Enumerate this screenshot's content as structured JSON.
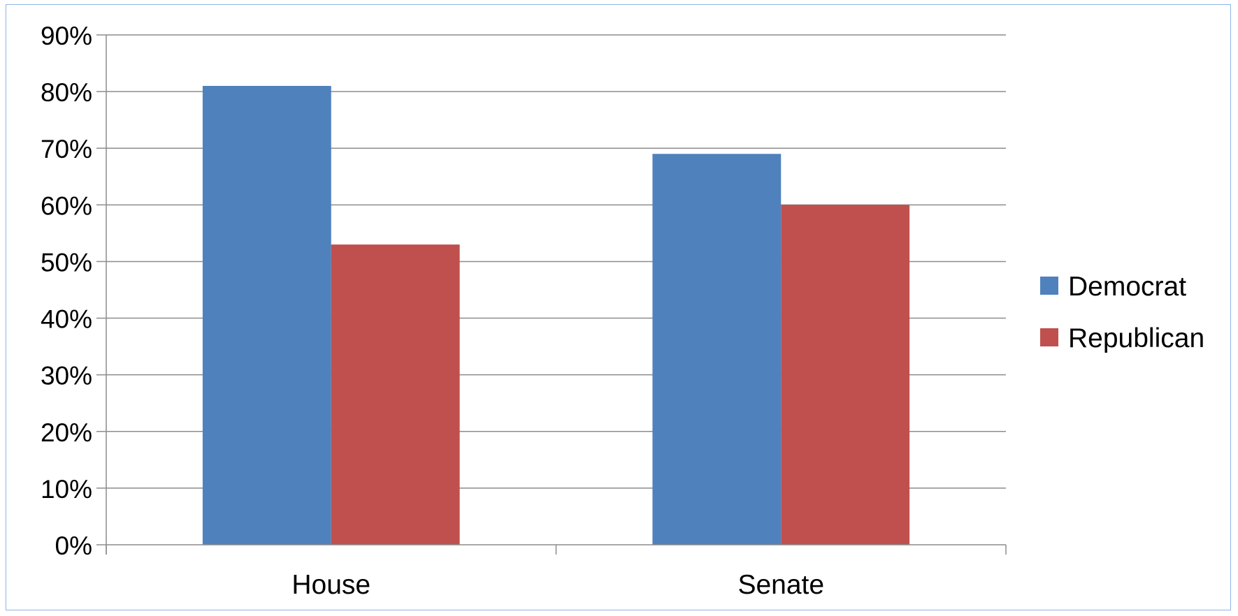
{
  "chart_data": {
    "type": "bar",
    "categories": [
      "House",
      "Senate"
    ],
    "series": [
      {
        "name": "Democrat",
        "values": [
          81,
          69
        ],
        "color": "#4f81bd"
      },
      {
        "name": "Republican",
        "values": [
          53,
          60
        ],
        "color": "#c0504d"
      }
    ],
    "ylim": [
      0,
      90
    ],
    "yticks": [
      "0%",
      "10%",
      "20%",
      "30%",
      "40%",
      "50%",
      "60%",
      "70%",
      "80%",
      "90%"
    ],
    "grid": true,
    "legend_position": "right",
    "gridline_color": "#8c8c8c"
  }
}
